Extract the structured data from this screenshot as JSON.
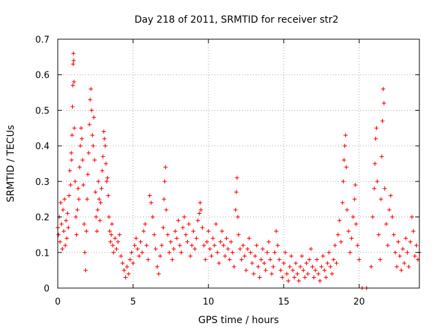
{
  "chart_data": {
    "type": "scatter",
    "title": "Day 218 of 2011, SRMTID for receiver str2",
    "xlabel": "GPS time / hours",
    "ylabel": "SRMTID / TECUs",
    "xlim": [
      0,
      24
    ],
    "ylim": [
      0,
      0.7
    ],
    "xticks": [
      0,
      5,
      10,
      15,
      20
    ],
    "xtick_labels": [
      "0",
      "5",
      "10",
      "15",
      "20"
    ],
    "yticks": [
      0,
      0.1,
      0.2,
      0.3,
      0.4,
      0.5,
      0.6,
      0.7
    ],
    "ytick_labels": [
      "0",
      "0.1",
      "0.2",
      "0.3",
      "0.4",
      "0.5",
      "0.6",
      "0.7"
    ],
    "grid": true,
    "marker": "plus",
    "series": [
      {
        "name": "SRMTID",
        "color": "#ff0000",
        "points": [
          [
            0.0,
            0.17
          ],
          [
            0.05,
            0.15
          ],
          [
            0.1,
            0.2
          ],
          [
            0.15,
            0.13
          ],
          [
            0.2,
            0.24
          ],
          [
            0.25,
            0.18
          ],
          [
            0.3,
            0.11
          ],
          [
            0.35,
            0.22
          ],
          [
            0.4,
            0.16
          ],
          [
            0.45,
            0.25
          ],
          [
            0.5,
            0.12
          ],
          [
            0.55,
            0.19
          ],
          [
            0.6,
            0.14
          ],
          [
            0.65,
            0.21
          ],
          [
            0.7,
            0.17
          ],
          [
            0.75,
            0.26
          ],
          [
            0.8,
            0.33
          ],
          [
            0.85,
            0.29
          ],
          [
            0.9,
            0.38
          ],
          [
            0.92,
            0.36
          ],
          [
            0.95,
            0.43
          ],
          [
            0.98,
            0.51
          ],
          [
            1.0,
            0.57
          ],
          [
            1.02,
            0.63
          ],
          [
            1.04,
            0.66
          ],
          [
            1.06,
            0.64
          ],
          [
            1.08,
            0.58
          ],
          [
            1.1,
            0.45
          ],
          [
            1.15,
            0.3
          ],
          [
            1.2,
            0.2
          ],
          [
            1.25,
            0.15
          ],
          [
            1.3,
            0.22
          ],
          [
            1.35,
            0.28
          ],
          [
            1.4,
            0.25
          ],
          [
            1.45,
            0.34
          ],
          [
            1.5,
            0.4
          ],
          [
            1.55,
            0.45
          ],
          [
            1.6,
            0.42
          ],
          [
            1.65,
            0.36
          ],
          [
            1.7,
            0.29
          ],
          [
            1.75,
            0.18
          ],
          [
            1.8,
            0.1
          ],
          [
            1.85,
            0.05
          ],
          [
            1.9,
            0.16
          ],
          [
            1.95,
            0.25
          ],
          [
            2.0,
            0.32
          ],
          [
            2.05,
            0.38
          ],
          [
            2.1,
            0.46
          ],
          [
            2.15,
            0.53
          ],
          [
            2.2,
            0.56
          ],
          [
            2.25,
            0.5
          ],
          [
            2.3,
            0.43
          ],
          [
            2.35,
            0.4
          ],
          [
            2.4,
            0.48
          ],
          [
            2.45,
            0.36
          ],
          [
            2.5,
            0.27
          ],
          [
            2.55,
            0.2
          ],
          [
            2.6,
            0.16
          ],
          [
            2.65,
            0.22
          ],
          [
            2.7,
            0.3
          ],
          [
            2.75,
            0.25
          ],
          [
            2.8,
            0.19
          ],
          [
            2.85,
            0.24
          ],
          [
            2.9,
            0.28
          ],
          [
            2.95,
            0.33
          ],
          [
            3.0,
            0.37
          ],
          [
            3.05,
            0.44
          ],
          [
            3.1,
            0.42
          ],
          [
            3.15,
            0.4
          ],
          [
            3.2,
            0.35
          ],
          [
            3.25,
            0.3
          ],
          [
            3.3,
            0.31
          ],
          [
            3.35,
            0.26
          ],
          [
            3.4,
            0.2
          ],
          [
            3.45,
            0.16
          ],
          [
            3.5,
            0.13
          ],
          [
            3.55,
            0.15
          ],
          [
            3.6,
            0.18
          ],
          [
            3.65,
            0.12
          ],
          [
            3.7,
            0.1
          ],
          [
            3.8,
            0.14
          ],
          [
            3.9,
            0.11
          ],
          [
            4.0,
            0.13
          ],
          [
            4.1,
            0.15
          ],
          [
            4.2,
            0.09
          ],
          [
            4.3,
            0.07
          ],
          [
            4.4,
            0.05
          ],
          [
            4.5,
            0.03
          ],
          [
            4.6,
            0.06
          ],
          [
            4.7,
            0.04
          ],
          [
            4.8,
            0.08
          ],
          [
            4.9,
            0.1
          ],
          [
            5.0,
            0.07
          ],
          [
            5.1,
            0.12
          ],
          [
            5.2,
            0.14
          ],
          [
            5.3,
            0.11
          ],
          [
            5.4,
            0.09
          ],
          [
            5.5,
            0.13
          ],
          [
            5.6,
            0.1
          ],
          [
            5.7,
            0.16
          ],
          [
            5.8,
            0.18
          ],
          [
            5.9,
            0.12
          ],
          [
            6.0,
            0.08
          ],
          [
            6.1,
            0.26
          ],
          [
            6.2,
            0.24
          ],
          [
            6.3,
            0.2
          ],
          [
            6.4,
            0.15
          ],
          [
            6.5,
            0.11
          ],
          [
            6.6,
            0.06
          ],
          [
            6.7,
            0.04
          ],
          [
            6.8,
            0.09
          ],
          [
            6.9,
            0.12
          ],
          [
            7.0,
            0.17
          ],
          [
            7.05,
            0.25
          ],
          [
            7.1,
            0.3
          ],
          [
            7.15,
            0.34
          ],
          [
            7.2,
            0.22
          ],
          [
            7.3,
            0.15
          ],
          [
            7.4,
            0.1
          ],
          [
            7.5,
            0.13
          ],
          [
            7.6,
            0.08
          ],
          [
            7.7,
            0.11
          ],
          [
            7.8,
            0.16
          ],
          [
            7.9,
            0.14
          ],
          [
            8.0,
            0.19
          ],
          [
            8.1,
            0.12
          ],
          [
            8.2,
            0.1
          ],
          [
            8.3,
            0.17
          ],
          [
            8.4,
            0.2
          ],
          [
            8.5,
            0.15
          ],
          [
            8.6,
            0.13
          ],
          [
            8.7,
            0.18
          ],
          [
            8.8,
            0.09
          ],
          [
            8.9,
            0.12
          ],
          [
            9.0,
            0.16
          ],
          [
            9.1,
            0.11
          ],
          [
            9.2,
            0.14
          ],
          [
            9.3,
            0.19
          ],
          [
            9.4,
            0.21
          ],
          [
            9.45,
            0.24
          ],
          [
            9.5,
            0.22
          ],
          [
            9.6,
            0.17
          ],
          [
            9.7,
            0.12
          ],
          [
            9.8,
            0.08
          ],
          [
            9.9,
            0.13
          ],
          [
            10.0,
            0.16
          ],
          [
            10.1,
            0.11
          ],
          [
            10.2,
            0.09
          ],
          [
            10.3,
            0.14
          ],
          [
            10.4,
            0.12
          ],
          [
            10.5,
            0.18
          ],
          [
            10.6,
            0.1
          ],
          [
            10.7,
            0.07
          ],
          [
            10.8,
            0.13
          ],
          [
            10.9,
            0.16
          ],
          [
            11.0,
            0.12
          ],
          [
            11.1,
            0.09
          ],
          [
            11.2,
            0.14
          ],
          [
            11.3,
            0.11
          ],
          [
            11.4,
            0.08
          ],
          [
            11.5,
            0.13
          ],
          [
            11.6,
            0.1
          ],
          [
            11.7,
            0.06
          ],
          [
            11.8,
            0.22
          ],
          [
            11.85,
            0.27
          ],
          [
            11.9,
            0.31
          ],
          [
            11.95,
            0.2
          ],
          [
            12.0,
            0.15
          ],
          [
            12.1,
            0.11
          ],
          [
            12.2,
            0.08
          ],
          [
            12.3,
            0.12
          ],
          [
            12.4,
            0.09
          ],
          [
            12.5,
            0.05
          ],
          [
            12.6,
            0.11
          ],
          [
            12.7,
            0.14
          ],
          [
            12.8,
            0.1
          ],
          [
            12.9,
            0.07
          ],
          [
            13.0,
            0.04
          ],
          [
            13.1,
            0.09
          ],
          [
            13.2,
            0.12
          ],
          [
            13.3,
            0.06
          ],
          [
            13.4,
            0.03
          ],
          [
            13.5,
            0.08
          ],
          [
            13.6,
            0.11
          ],
          [
            13.7,
            0.07
          ],
          [
            13.8,
            0.05
          ],
          [
            13.9,
            0.1
          ],
          [
            14.0,
            0.13
          ],
          [
            14.1,
            0.08
          ],
          [
            14.2,
            0.04
          ],
          [
            14.3,
            0.06
          ],
          [
            14.4,
            0.1
          ],
          [
            14.5,
            0.16
          ],
          [
            14.6,
            0.12
          ],
          [
            14.7,
            0.08
          ],
          [
            14.8,
            0.05
          ],
          [
            14.9,
            0.03
          ],
          [
            15.0,
            0.07
          ],
          [
            15.1,
            0.1
          ],
          [
            15.2,
            0.04
          ],
          [
            15.3,
            0.02
          ],
          [
            15.4,
            0.06
          ],
          [
            15.5,
            0.09
          ],
          [
            15.6,
            0.05
          ],
          [
            15.7,
            0.03
          ],
          [
            15.8,
            0.07
          ],
          [
            15.9,
            0.04
          ],
          [
            16.0,
            0.02
          ],
          [
            16.1,
            0.06
          ],
          [
            16.2,
            0.09
          ],
          [
            16.3,
            0.05
          ],
          [
            16.4,
            0.03
          ],
          [
            16.5,
            0.07
          ],
          [
            16.6,
            0.04
          ],
          [
            16.7,
            0.08
          ],
          [
            16.8,
            0.11
          ],
          [
            16.9,
            0.06
          ],
          [
            17.0,
            0.03
          ],
          [
            17.1,
            0.05
          ],
          [
            17.2,
            0.08
          ],
          [
            17.3,
            0.04
          ],
          [
            17.4,
            0.02
          ],
          [
            17.5,
            0.06
          ],
          [
            17.6,
            0.09
          ],
          [
            17.7,
            0.05
          ],
          [
            17.8,
            0.03
          ],
          [
            17.9,
            0.07
          ],
          [
            18.0,
            0.1
          ],
          [
            18.1,
            0.06
          ],
          [
            18.2,
            0.04
          ],
          [
            18.3,
            0.08
          ],
          [
            18.4,
            0.12
          ],
          [
            18.5,
            0.07
          ],
          [
            18.6,
            0.15
          ],
          [
            18.7,
            0.19
          ],
          [
            18.8,
            0.13
          ],
          [
            18.9,
            0.24
          ],
          [
            18.95,
            0.3
          ],
          [
            19.0,
            0.36
          ],
          [
            19.05,
            0.4
          ],
          [
            19.1,
            0.43
          ],
          [
            19.15,
            0.34
          ],
          [
            19.2,
            0.22
          ],
          [
            19.3,
            0.16
          ],
          [
            19.4,
            0.1
          ],
          [
            19.5,
            0.14
          ],
          [
            19.6,
            0.2
          ],
          [
            19.7,
            0.25
          ],
          [
            19.75,
            0.29
          ],
          [
            19.8,
            0.18
          ],
          [
            19.9,
            0.12
          ],
          [
            20.0,
            0.08
          ],
          [
            20.2,
            0.0
          ],
          [
            20.5,
            0.0
          ],
          [
            20.8,
            0.06
          ],
          [
            20.9,
            0.2
          ],
          [
            21.0,
            0.28
          ],
          [
            21.05,
            0.35
          ],
          [
            21.1,
            0.42
          ],
          [
            21.15,
            0.45
          ],
          [
            21.2,
            0.3
          ],
          [
            21.3,
            0.15
          ],
          [
            21.4,
            0.08
          ],
          [
            21.45,
            0.25
          ],
          [
            21.5,
            0.37
          ],
          [
            21.55,
            0.47
          ],
          [
            21.6,
            0.56
          ],
          [
            21.65,
            0.52
          ],
          [
            21.7,
            0.28
          ],
          [
            21.8,
            0.18
          ],
          [
            21.9,
            0.12
          ],
          [
            22.0,
            0.22
          ],
          [
            22.1,
            0.26
          ],
          [
            22.2,
            0.2
          ],
          [
            22.3,
            0.15
          ],
          [
            22.4,
            0.1
          ],
          [
            22.5,
            0.06
          ],
          [
            22.6,
            0.13
          ],
          [
            22.7,
            0.09
          ],
          [
            22.8,
            0.05
          ],
          [
            22.9,
            0.11
          ],
          [
            23.0,
            0.07
          ],
          [
            23.1,
            0.14
          ],
          [
            23.2,
            0.1
          ],
          [
            23.3,
            0.06
          ],
          [
            23.4,
            0.13
          ],
          [
            23.5,
            0.2
          ],
          [
            23.6,
            0.16
          ],
          [
            23.7,
            0.09
          ],
          [
            23.8,
            0.12
          ],
          [
            23.9,
            0.08
          ],
          [
            24.0,
            0.1
          ]
        ]
      }
    ]
  }
}
